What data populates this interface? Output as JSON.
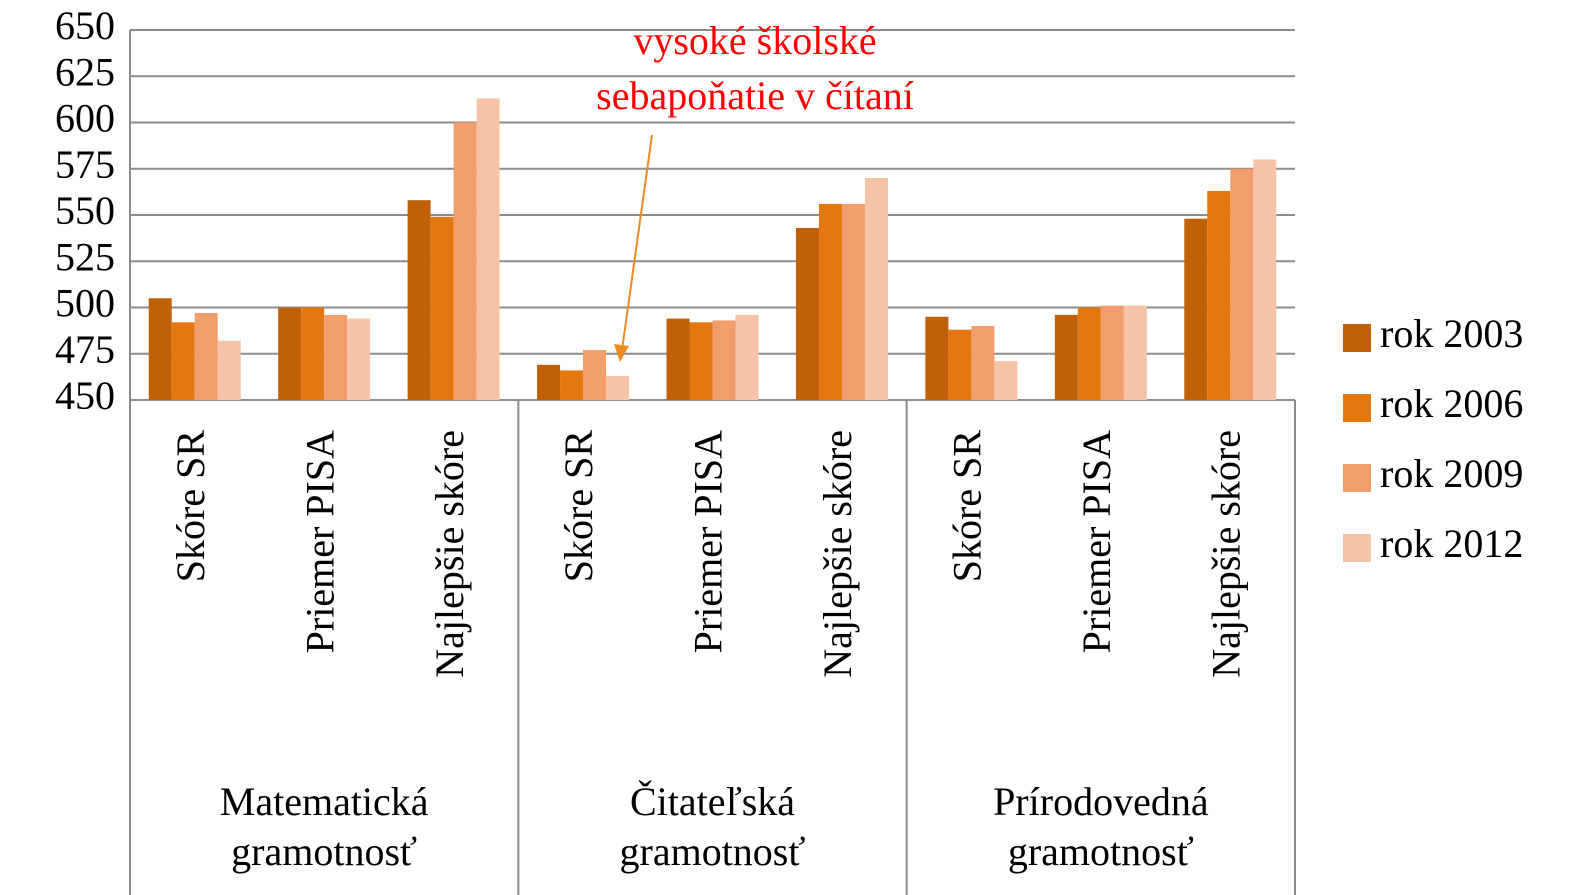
{
  "chart_data": {
    "type": "bar",
    "categories": [
      "Skóre SR",
      "Priemer PISA",
      "Najlepšie skóre",
      "Skóre SR",
      "Priemer PISA",
      "Najlepšie skóre",
      "Skóre SR",
      "Priemer PISA",
      "Najlepšie skóre"
    ],
    "category_groups": [
      "Matematická gramotnosť",
      "Čitateľská gramotnosť",
      "Prírodovedná gramotnosť"
    ],
    "series": [
      {
        "name": "rok 2003",
        "color": "#c0600a",
        "values": [
          505,
          500,
          558,
          469,
          494,
          543,
          495,
          496,
          548
        ]
      },
      {
        "name": "rok 2006",
        "color": "#e2780f",
        "values": [
          492,
          500,
          549,
          466,
          492,
          556,
          488,
          500,
          563
        ]
      },
      {
        "name": "rok 2009",
        "color": "#f19d6c",
        "values": [
          497,
          496,
          600,
          477,
          493,
          556,
          490,
          501,
          575
        ]
      },
      {
        "name": "rok 2012",
        "color": "#f6c3a8",
        "values": [
          482,
          494,
          613,
          463,
          496,
          570,
          471,
          501,
          580
        ]
      }
    ],
    "ylim": [
      450,
      650
    ],
    "yticks": [
      450,
      475,
      500,
      525,
      550,
      575,
      600,
      625,
      650
    ],
    "grid": true,
    "legend": "right",
    "annotation": {
      "text": [
        "vysoké školské",
        "sebapoňatie v čítaní"
      ],
      "color": "#ff0000"
    }
  }
}
